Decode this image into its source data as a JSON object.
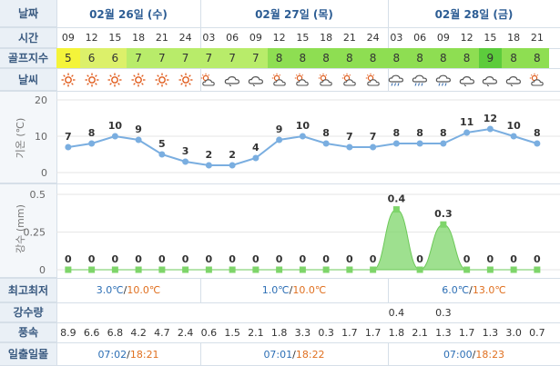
{
  "labels": {
    "date": "날짜",
    "time": "시간",
    "golf_index": "골프지수",
    "weather": "날씨",
    "temp_axis": "기온 (℃)",
    "rain_axis": "강수 (mm)",
    "minmax": "최고최저",
    "precip": "강수량",
    "wind": "풍속",
    "sun": "일출일몰"
  },
  "days": [
    {
      "label": "02월 26일 (수)",
      "min": "3.0℃",
      "max": "10.0℃",
      "sunrise": "07:02",
      "sunset": "18:21"
    },
    {
      "label": "02월 27일 (목)",
      "min": "1.0℃",
      "max": "10.0℃",
      "sunrise": "07:01",
      "sunset": "18:22"
    },
    {
      "label": "02월 28일 (금)",
      "min": "6.0℃",
      "max": "13.0℃",
      "sunrise": "07:00",
      "sunset": "18:23"
    }
  ],
  "hours": [
    "09",
    "12",
    "15",
    "18",
    "21",
    "24",
    "03",
    "06",
    "09",
    "12",
    "15",
    "18",
    "21",
    "24",
    "03",
    "06",
    "09",
    "12",
    "15",
    "18",
    "21"
  ],
  "golf": [
    "5",
    "6",
    "6",
    "7",
    "7",
    "7",
    "7",
    "7",
    "7",
    "8",
    "8",
    "8",
    "8",
    "8",
    "8",
    "8",
    "8",
    "8",
    "9",
    "8",
    "8"
  ],
  "golf_colors": {
    "5": "#f4f43a",
    "6": "#dcf06a",
    "7": "#b8ec6a",
    "8": "#8ede52",
    "9": "#5ccc3c"
  },
  "weather_icons": [
    "sun-icon",
    "sun-icon",
    "sun-icon",
    "sun-icon",
    "sun-icon",
    "sun-icon",
    "partly-cloudy-icon",
    "cloud-icon",
    "cloud-icon",
    "partly-cloudy-icon",
    "partly-cloudy-icon",
    "partly-cloudy-icon",
    "partly-cloudy-icon",
    "partly-cloudy-icon",
    "cloud-rain-icon",
    "cloud-rain-icon",
    "cloud-rain-icon",
    "cloud-icon",
    "cloud-icon",
    "cloud-icon",
    "partly-cloudy-icon"
  ],
  "precip": [
    "",
    "",
    "",
    "",
    "",
    "",
    "",
    "",
    "",
    "",
    "",
    "",
    "",
    "",
    "0.4",
    "",
    "0.3",
    "",
    "",
    "",
    ""
  ],
  "wind": [
    "8.9",
    "6.6",
    "6.8",
    "4.2",
    "4.7",
    "2.4",
    "0.6",
    "1.5",
    "2.1",
    "1.8",
    "3.3",
    "0.3",
    "1.7",
    "1.7",
    "1.8",
    "2.1",
    "1.3",
    "1.7",
    "1.3",
    "3.0",
    "0.7"
  ],
  "chart_data": [
    {
      "type": "line",
      "ylabel": "기온 (℃)",
      "ylim": [
        0,
        20
      ],
      "yticks": [
        "0",
        "10",
        "20"
      ],
      "x": [
        "09",
        "12",
        "15",
        "18",
        "21",
        "24",
        "03",
        "06",
        "09",
        "12",
        "15",
        "18",
        "21",
        "24",
        "03",
        "06",
        "09",
        "12",
        "15",
        "18",
        "21"
      ],
      "values": [
        7,
        8,
        10,
        9,
        5,
        3,
        2,
        2,
        4,
        9,
        10,
        8,
        7,
        7,
        8,
        8,
        8,
        11,
        12,
        10,
        8
      ],
      "color": "#7aaee0"
    },
    {
      "type": "area",
      "ylabel": "강수 (mm)",
      "ylim": [
        0,
        0.5
      ],
      "yticks": [
        "0",
        "0.25",
        "0.5"
      ],
      "x": [
        "09",
        "12",
        "15",
        "18",
        "21",
        "24",
        "03",
        "06",
        "09",
        "12",
        "15",
        "18",
        "21",
        "24",
        "03",
        "06",
        "09",
        "12",
        "15",
        "18",
        "21"
      ],
      "values": [
        0,
        0,
        0,
        0,
        0,
        0,
        0,
        0,
        0,
        0,
        0,
        0,
        0,
        0,
        0.4,
        0,
        0.3,
        0,
        0,
        0,
        0
      ],
      "color": "#7ed56a"
    }
  ]
}
